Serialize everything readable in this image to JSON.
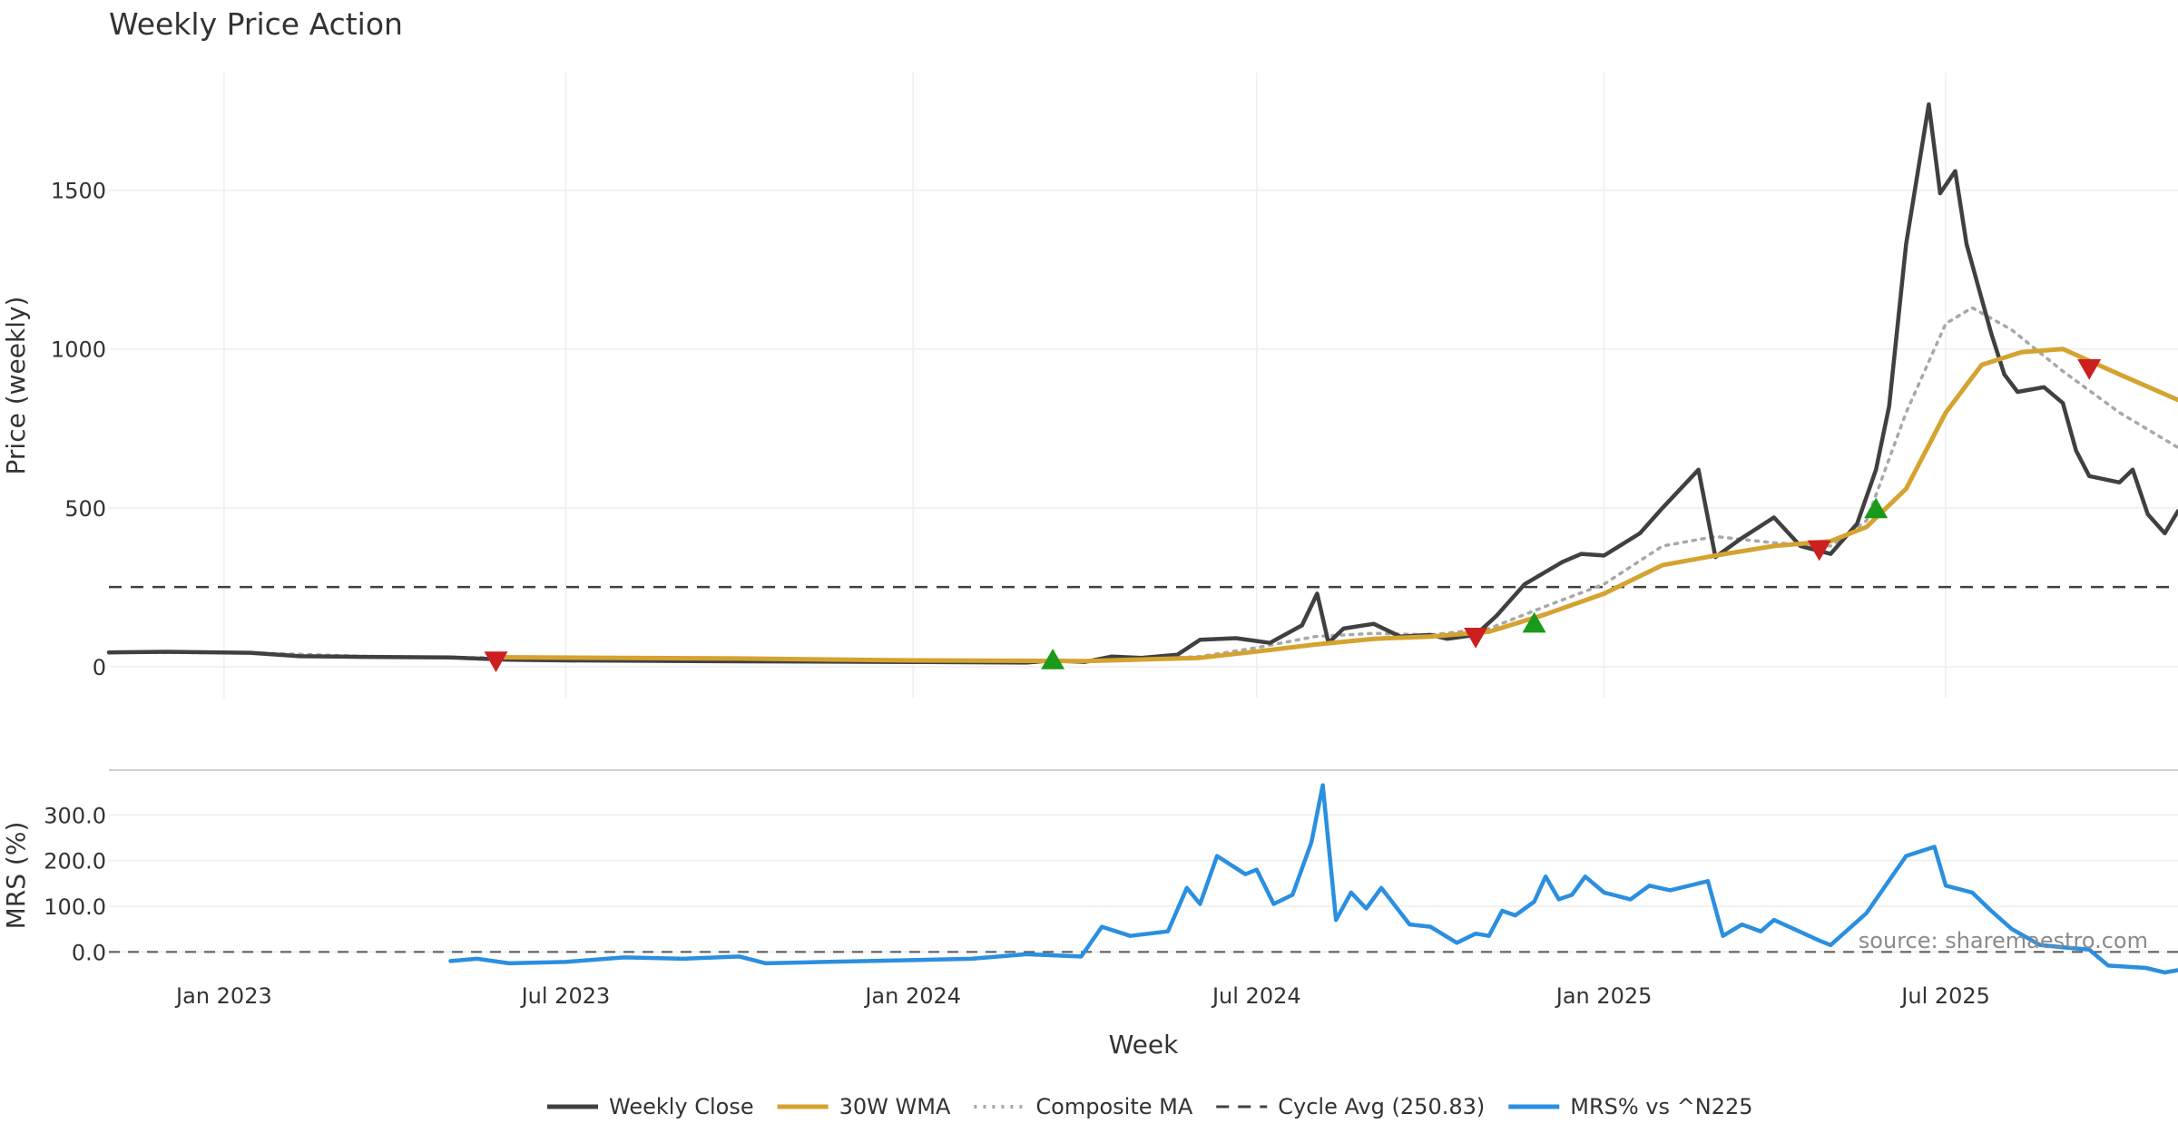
{
  "chart_data": {
    "type": "line",
    "title": "Weekly Price Action",
    "xlabel": "Week",
    "price_panel": {
      "ylabel": "Price (weekly)",
      "ylim": [
        -100,
        1870
      ],
      "yticks": [
        0,
        500,
        1000,
        1500
      ],
      "reference_line": 250.83,
      "series": [
        {
          "name": "Weekly Close",
          "color": "#404040",
          "style": "solid",
          "points": [
            [
              "2022-11-01",
              45
            ],
            [
              "2022-12-01",
              47
            ],
            [
              "2023-01-15",
              44
            ],
            [
              "2023-02-10",
              33
            ],
            [
              "2023-03-15",
              31
            ],
            [
              "2023-05-01",
              29
            ],
            [
              "2023-06-01",
              22
            ],
            [
              "2023-07-01",
              20
            ],
            [
              "2023-10-01",
              17
            ],
            [
              "2024-01-01",
              15
            ],
            [
              "2024-03-01",
              13
            ],
            [
              "2024-03-15",
              20
            ],
            [
              "2024-04-01",
              15
            ],
            [
              "2024-04-15",
              32
            ],
            [
              "2024-05-01",
              28
            ],
            [
              "2024-05-20",
              38
            ],
            [
              "2024-06-01",
              85
            ],
            [
              "2024-06-20",
              90
            ],
            [
              "2024-07-08",
              75
            ],
            [
              "2024-07-25",
              130
            ],
            [
              "2024-08-02",
              230
            ],
            [
              "2024-08-08",
              75
            ],
            [
              "2024-08-16",
              120
            ],
            [
              "2024-09-01",
              135
            ],
            [
              "2024-09-15",
              95
            ],
            [
              "2024-10-01",
              100
            ],
            [
              "2024-10-10",
              88
            ],
            [
              "2024-10-25",
              100
            ],
            [
              "2024-11-05",
              160
            ],
            [
              "2024-11-20",
              260
            ],
            [
              "2024-12-10",
              330
            ],
            [
              "2024-12-20",
              355
            ],
            [
              "2025-01-01",
              350
            ],
            [
              "2025-01-20",
              420
            ],
            [
              "2025-02-01",
              500
            ],
            [
              "2025-02-20",
              620
            ],
            [
              "2025-03-01",
              345
            ],
            [
              "2025-03-15",
              405
            ],
            [
              "2025-04-01",
              470
            ],
            [
              "2025-04-15",
              380
            ],
            [
              "2025-05-01",
              355
            ],
            [
              "2025-05-15",
              450
            ],
            [
              "2025-05-25",
              620
            ],
            [
              "2025-06-01",
              820
            ],
            [
              "2025-06-10",
              1330
            ],
            [
              "2025-06-22",
              1770
            ],
            [
              "2025-06-28",
              1490
            ],
            [
              "2025-07-06",
              1560
            ],
            [
              "2025-07-12",
              1330
            ],
            [
              "2025-07-25",
              1050
            ],
            [
              "2025-08-01",
              920
            ],
            [
              "2025-08-08",
              865
            ],
            [
              "2025-08-22",
              880
            ],
            [
              "2025-09-01",
              830
            ],
            [
              "2025-09-08",
              680
            ],
            [
              "2025-09-15",
              600
            ],
            [
              "2025-10-01",
              580
            ],
            [
              "2025-10-08",
              620
            ],
            [
              "2025-10-16",
              480
            ],
            [
              "2025-10-25",
              420
            ],
            [
              "2025-11-01",
              490
            ]
          ]
        },
        {
          "name": "30W WMA",
          "color": "#d4a330",
          "style": "solid",
          "points": [
            [
              "2023-05-25",
              30
            ],
            [
              "2023-10-01",
              26
            ],
            [
              "2024-01-01",
              20
            ],
            [
              "2024-04-01",
              18
            ],
            [
              "2024-06-01",
              28
            ],
            [
              "2024-07-01",
              48
            ],
            [
              "2024-08-01",
              70
            ],
            [
              "2024-09-01",
              88
            ],
            [
              "2024-10-01",
              95
            ],
            [
              "2024-11-01",
              110
            ],
            [
              "2024-12-01",
              165
            ],
            [
              "2025-01-01",
              230
            ],
            [
              "2025-02-01",
              320
            ],
            [
              "2025-03-01",
              350
            ],
            [
              "2025-04-01",
              380
            ],
            [
              "2025-05-01",
              395
            ],
            [
              "2025-05-20",
              440
            ],
            [
              "2025-06-10",
              560
            ],
            [
              "2025-07-01",
              800
            ],
            [
              "2025-07-20",
              950
            ],
            [
              "2025-08-10",
              990
            ],
            [
              "2025-09-01",
              1000
            ],
            [
              "2025-10-01",
              920
            ],
            [
              "2025-11-01",
              840
            ]
          ]
        },
        {
          "name": "Composite MA",
          "color": "#a8a8a8",
          "style": "dotted",
          "points": [
            [
              "2022-11-01",
              45
            ],
            [
              "2023-01-15",
              44
            ],
            [
              "2023-03-15",
              33
            ],
            [
              "2023-07-01",
              25
            ],
            [
              "2024-01-01",
              18
            ],
            [
              "2024-04-01",
              17
            ],
            [
              "2024-06-01",
              32
            ],
            [
              "2024-07-01",
              60
            ],
            [
              "2024-08-01",
              95
            ],
            [
              "2024-09-01",
              105
            ],
            [
              "2024-10-01",
              100
            ],
            [
              "2024-11-01",
              120
            ],
            [
              "2024-12-01",
              190
            ],
            [
              "2025-01-01",
              260
            ],
            [
              "2025-02-01",
              380
            ],
            [
              "2025-03-01",
              410
            ],
            [
              "2025-04-01",
              390
            ],
            [
              "2025-05-01",
              380
            ],
            [
              "2025-05-20",
              460
            ],
            [
              "2025-06-10",
              800
            ],
            [
              "2025-07-01",
              1080
            ],
            [
              "2025-07-15",
              1130
            ],
            [
              "2025-08-05",
              1060
            ],
            [
              "2025-09-01",
              930
            ],
            [
              "2025-10-01",
              800
            ],
            [
              "2025-11-01",
              690
            ]
          ]
        }
      ],
      "markers": [
        {
          "date": "2023-05-25",
          "value": 20,
          "kind": "sell",
          "color": "#cc1f1f"
        },
        {
          "date": "2024-03-15",
          "value": 20,
          "kind": "buy",
          "color": "#1a9a1a"
        },
        {
          "date": "2024-10-25",
          "value": 95,
          "kind": "sell",
          "color": "#cc1f1f"
        },
        {
          "date": "2024-11-25",
          "value": 135,
          "kind": "buy",
          "color": "#1a9a1a"
        },
        {
          "date": "2025-04-25",
          "value": 370,
          "kind": "sell",
          "color": "#cc1f1f"
        },
        {
          "date": "2025-05-25",
          "value": 495,
          "kind": "buy",
          "color": "#1a9a1a"
        },
        {
          "date": "2025-09-15",
          "value": 940,
          "kind": "sell",
          "color": "#cc1f1f"
        }
      ]
    },
    "mrs_panel": {
      "ylabel": "MRS (%)",
      "ylim": [
        -45,
        380
      ],
      "yticks": [
        "0.0",
        "100.0",
        "200.0",
        "300.0"
      ],
      "reference_line": 0,
      "series": [
        {
          "name": "MRS% vs ^N225",
          "color": "#2b8fe0",
          "style": "solid",
          "points": [
            [
              "2023-05-01",
              -20
            ],
            [
              "2023-05-15",
              -15
            ],
            [
              "2023-06-01",
              -25
            ],
            [
              "2023-07-01",
              -22
            ],
            [
              "2023-08-01",
              -12
            ],
            [
              "2023-09-01",
              -15
            ],
            [
              "2023-10-01",
              -10
            ],
            [
              "2023-10-15",
              -25
            ],
            [
              "2023-11-15",
              -22
            ],
            [
              "2024-01-01",
              -18
            ],
            [
              "2024-02-01",
              -15
            ],
            [
              "2024-03-01",
              -5
            ],
            [
              "2024-03-30",
              -10
            ],
            [
              "2024-04-10",
              55
            ],
            [
              "2024-04-25",
              35
            ],
            [
              "2024-05-15",
              45
            ],
            [
              "2024-05-25",
              140
            ],
            [
              "2024-06-01",
              105
            ],
            [
              "2024-06-10",
              210
            ],
            [
              "2024-06-25",
              170
            ],
            [
              "2024-07-01",
              180
            ],
            [
              "2024-07-10",
              105
            ],
            [
              "2024-07-20",
              125
            ],
            [
              "2024-07-30",
              240
            ],
            [
              "2024-08-05",
              365
            ],
            [
              "2024-08-12",
              70
            ],
            [
              "2024-08-20",
              130
            ],
            [
              "2024-08-28",
              95
            ],
            [
              "2024-09-05",
              140
            ],
            [
              "2024-09-20",
              60
            ],
            [
              "2024-10-01",
              55
            ],
            [
              "2024-10-15",
              20
            ],
            [
              "2024-10-25",
              40
            ],
            [
              "2024-11-01",
              35
            ],
            [
              "2024-11-08",
              90
            ],
            [
              "2024-11-15",
              80
            ],
            [
              "2024-11-25",
              110
            ],
            [
              "2024-12-01",
              165
            ],
            [
              "2024-12-08",
              115
            ],
            [
              "2024-12-15",
              125
            ],
            [
              "2024-12-22",
              165
            ],
            [
              "2025-01-01",
              130
            ],
            [
              "2025-01-15",
              115
            ],
            [
              "2025-01-25",
              145
            ],
            [
              "2025-02-05",
              135
            ],
            [
              "2025-02-25",
              155
            ],
            [
              "2025-03-05",
              35
            ],
            [
              "2025-03-15",
              60
            ],
            [
              "2025-03-25",
              45
            ],
            [
              "2025-04-01",
              70
            ],
            [
              "2025-04-25",
              25
            ],
            [
              "2025-05-01",
              15
            ],
            [
              "2025-05-20",
              85
            ],
            [
              "2025-06-10",
              210
            ],
            [
              "2025-06-25",
              230
            ],
            [
              "2025-07-01",
              145
            ],
            [
              "2025-07-15",
              130
            ],
            [
              "2025-07-25",
              90
            ],
            [
              "2025-08-05",
              50
            ],
            [
              "2025-08-20",
              15
            ],
            [
              "2025-09-01",
              10
            ],
            [
              "2025-09-15",
              5
            ],
            [
              "2025-09-25",
              -30
            ],
            [
              "2025-10-15",
              -35
            ],
            [
              "2025-10-25",
              -45
            ],
            [
              "2025-11-01",
              -40
            ]
          ]
        }
      ]
    },
    "x_axis": {
      "range": [
        "2022-11-01",
        "2025-11-01"
      ],
      "ticks": [
        {
          "date": "2023-01-01",
          "label": "Jan 2023"
        },
        {
          "date": "2023-07-01",
          "label": "Jul 2023"
        },
        {
          "date": "2024-01-01",
          "label": "Jan 2024"
        },
        {
          "date": "2024-07-01",
          "label": "Jul 2024"
        },
        {
          "date": "2025-01-01",
          "label": "Jan 2025"
        },
        {
          "date": "2025-07-01",
          "label": "Jul 2025"
        }
      ]
    },
    "legend": {
      "position": "bottom-center",
      "entries": [
        {
          "label": "Weekly Close",
          "color": "#404040",
          "style": "solid"
        },
        {
          "label": "30W WMA",
          "color": "#d4a330",
          "style": "solid"
        },
        {
          "label": "Composite MA",
          "color": "#a8a8a8",
          "style": "dotted"
        },
        {
          "label": "Cycle Avg (250.83)",
          "color": "#404040",
          "style": "dashed"
        },
        {
          "label": "MRS% vs ^N225",
          "color": "#2b8fe0",
          "style": "solid"
        }
      ]
    },
    "source_note": "source: sharemaestro.com",
    "grid": true
  }
}
